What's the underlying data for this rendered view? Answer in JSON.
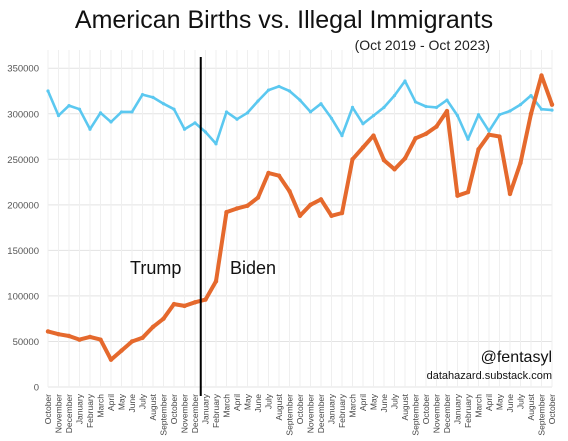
{
  "chart_data": {
    "type": "line",
    "title": "American Births vs. Illegal Immigrants",
    "subtitle": "(Oct 2019 - Oct 2023)",
    "categories": [
      "October",
      "November",
      "December",
      "January",
      "February",
      "March",
      "April",
      "May",
      "June",
      "July",
      "August",
      "September",
      "October",
      "November",
      "December",
      "January",
      "February",
      "March",
      "April",
      "May",
      "June",
      "July",
      "August",
      "September",
      "October",
      "November",
      "December",
      "January",
      "February",
      "March",
      "April",
      "May",
      "June",
      "July",
      "August",
      "September",
      "October",
      "November",
      "December",
      "January",
      "February",
      "March",
      "April",
      "May",
      "June",
      "July",
      "August",
      "September",
      "October"
    ],
    "ylim": [
      0,
      370000
    ],
    "yticks": [
      0,
      50000,
      100000,
      150000,
      200000,
      250000,
      300000,
      350000
    ],
    "grid": true,
    "series": [
      {
        "color": "#5bc8f0",
        "values": [
          325000,
          298000,
          309000,
          305000,
          283000,
          301000,
          291000,
          302000,
          302000,
          321000,
          318000,
          311000,
          305000,
          283000,
          290000,
          280000,
          267000,
          302000,
          294000,
          301000,
          314000,
          326000,
          330000,
          325000,
          315000,
          302000,
          311000,
          295000,
          276000,
          307000,
          289000,
          298000,
          307000,
          320000,
          336000,
          313000,
          308000,
          307000,
          315000,
          298000,
          272000,
          299000,
          281000,
          299000,
          303000,
          310000,
          320000,
          305000,
          304000
        ]
      },
      {
        "color": "#e5692d",
        "values": [
          61000,
          58000,
          56000,
          52000,
          55000,
          52000,
          30000,
          40000,
          50000,
          54000,
          66000,
          75000,
          91000,
          89000,
          93000,
          96000,
          116000,
          192000,
          196000,
          199000,
          208000,
          235000,
          232000,
          215000,
          188000,
          200000,
          206000,
          188000,
          191000,
          250000,
          263000,
          276000,
          249000,
          239000,
          251000,
          273000,
          278000,
          286000,
          303000,
          210000,
          214000,
          261000,
          277000,
          275000,
          212000,
          246000,
          300000,
          342000,
          310000
        ]
      }
    ],
    "divider_after_index": 15,
    "era_labels": {
      "left": "Trump",
      "right": "Biden"
    },
    "credit": {
      "handle": "@fentasyl",
      "site": "datahazard.substack.com"
    }
  }
}
